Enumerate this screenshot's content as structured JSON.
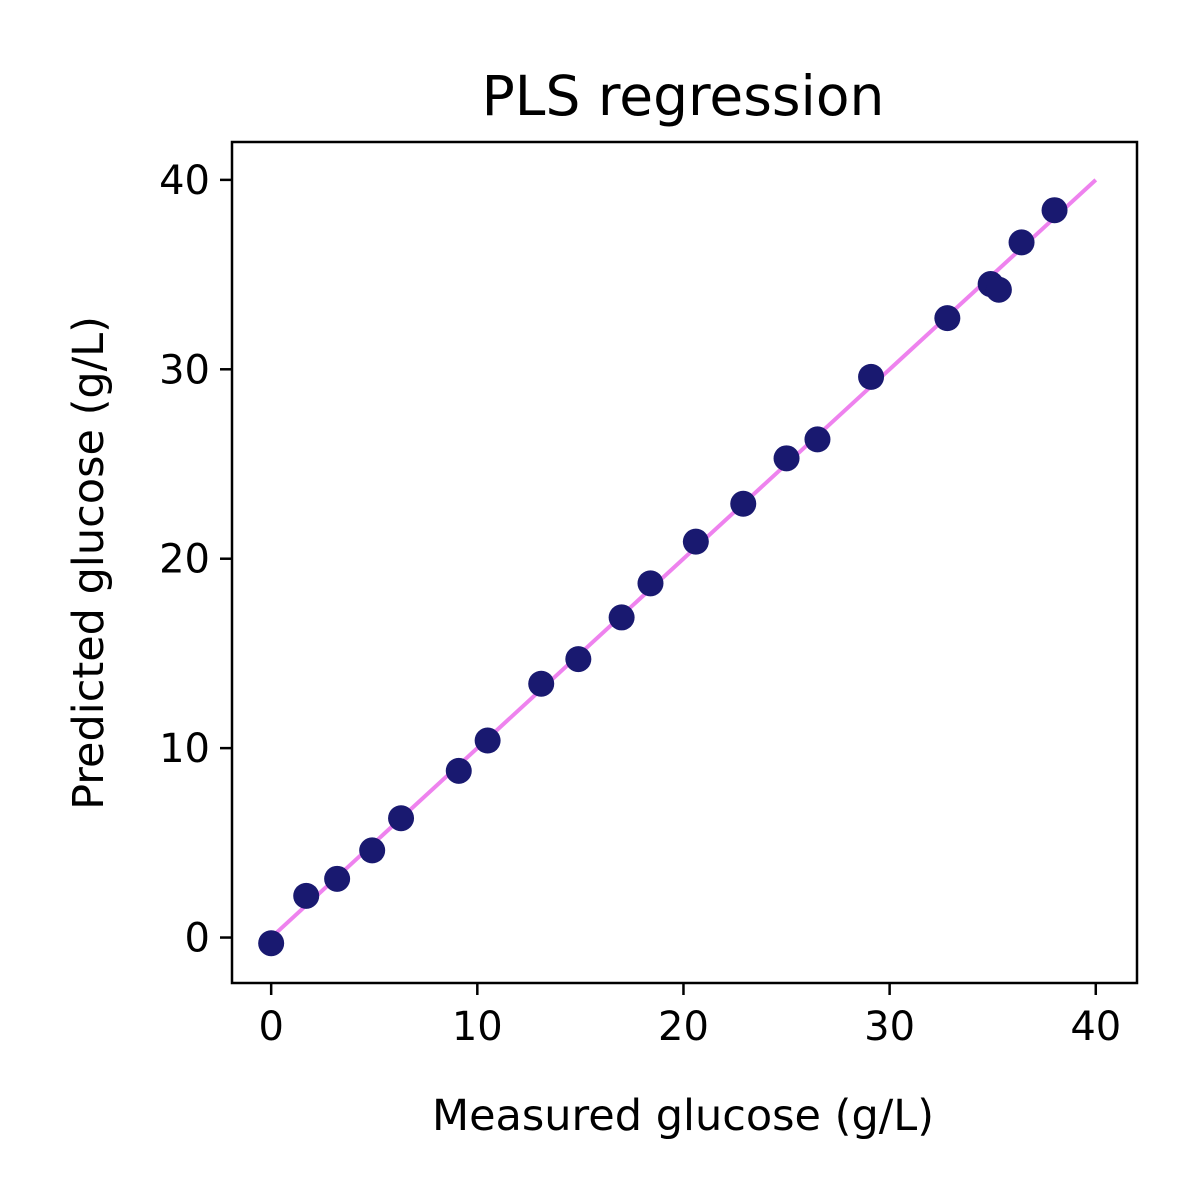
{
  "chart_data": {
    "type": "scatter",
    "title": "PLS regression",
    "xlabel": "Measured glucose (g/L)",
    "ylabel": "Predicted glucose (g/L)",
    "xlim": [
      -1.9,
      42
    ],
    "ylim": [
      -2.4,
      42
    ],
    "xticks": [
      0,
      10,
      20,
      30,
      40
    ],
    "yticks": [
      0,
      10,
      20,
      30,
      40
    ],
    "grid": false,
    "points": [
      [
        0.0,
        -0.3
      ],
      [
        1.7,
        2.2
      ],
      [
        3.2,
        3.1
      ],
      [
        4.9,
        4.6
      ],
      [
        6.3,
        6.3
      ],
      [
        9.1,
        8.8
      ],
      [
        10.5,
        10.4
      ],
      [
        13.1,
        13.4
      ],
      [
        14.9,
        14.7
      ],
      [
        17.0,
        16.9
      ],
      [
        18.4,
        18.7
      ],
      [
        20.6,
        20.9
      ],
      [
        22.9,
        22.9
      ],
      [
        25.0,
        25.3
      ],
      [
        26.5,
        26.3
      ],
      [
        29.1,
        29.6
      ],
      [
        32.8,
        32.7
      ],
      [
        34.9,
        34.5
      ],
      [
        35.3,
        34.2
      ],
      [
        36.4,
        36.7
      ],
      [
        38.0,
        38.4
      ]
    ],
    "reference_line": {
      "x": [
        0,
        40
      ],
      "y": [
        0,
        40
      ]
    },
    "colors": {
      "points": "#191970",
      "line": "#ee82ee",
      "axes": "#000000"
    }
  }
}
